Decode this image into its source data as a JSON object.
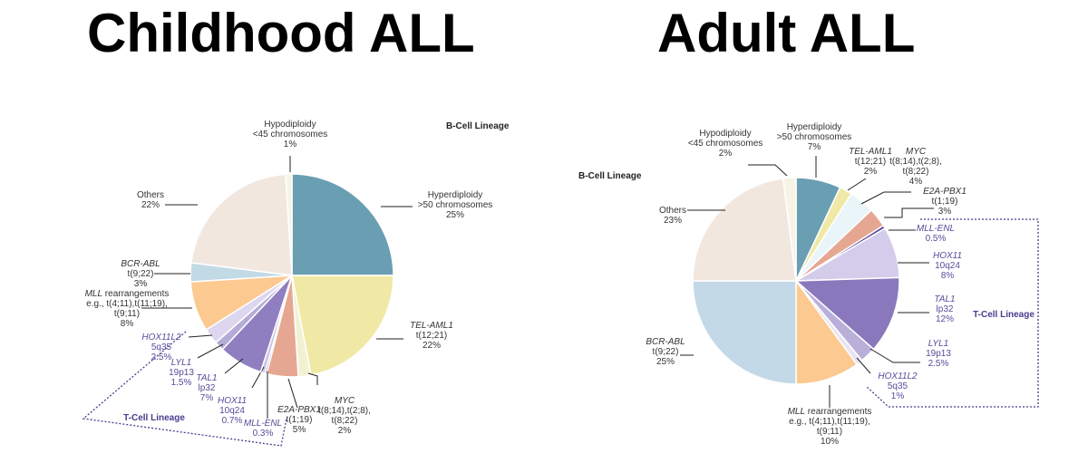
{
  "titles": {
    "left": "Childhood ALL",
    "right": "Adult ALL"
  },
  "chart_data": [
    {
      "type": "pie",
      "title": "Childhood ALL",
      "lineage_labels": {
        "b_cell": "B-Cell Lineage",
        "t_cell": "T-Cell Lineage"
      },
      "slices": [
        {
          "lines": [
            "Hyperdiploidy",
            ">50 chromosomes",
            "25%"
          ],
          "italic_first": false,
          "lineage": "B",
          "value": 25,
          "color": "#6a9eb2"
        },
        {
          "lines": [
            "TEL-AML1",
            "t(12;21)",
            "22%"
          ],
          "italic_first": true,
          "lineage": "B",
          "value": 22,
          "color": "#f0e9a6"
        },
        {
          "lines": [
            "MYC",
            "t(8;14),t(2;8),",
            "t(8;22)",
            "2%"
          ],
          "italic_first": true,
          "lineage": "B",
          "value": 2,
          "color": "#f3f1d4"
        },
        {
          "lines": [
            "E2A-PBX1",
            "t(1;19)",
            "5%"
          ],
          "italic_first": true,
          "lineage": "B",
          "value": 5,
          "color": "#e6a792"
        },
        {
          "lines": [
            "MLL-ENL",
            "0.3%"
          ],
          "italic_first": true,
          "lineage": "T",
          "value": 0.3,
          "color": "#7d6db0"
        },
        {
          "lines": [
            "HOX11",
            "10q24",
            "0.7%"
          ],
          "italic_first": true,
          "lineage": "T",
          "value": 0.7,
          "color": "#cbc4e6"
        },
        {
          "lines": [
            "TAL1",
            "lp32",
            "7%"
          ],
          "italic_first": true,
          "lineage": "T",
          "value": 7,
          "color": "#8f7fc0"
        },
        {
          "lines": [
            "LYL1",
            "19p13",
            "1.5%"
          ],
          "italic_first": true,
          "lineage": "T",
          "value": 1.5,
          "color": "#b5abd8"
        },
        {
          "lines": [
            "HOX11L2",
            "5q35",
            "2.5%"
          ],
          "italic_first": true,
          "lineage": "T",
          "value": 2.5,
          "color": "#dcd6ef"
        },
        {
          "lines": [
            "MLL rearrangements",
            "e.g., t(4;11),t(11;19),",
            "t(9;11)",
            "8%"
          ],
          "italic_first": "MLL",
          "lineage": "B",
          "value": 8,
          "color": "#fcc991"
        },
        {
          "lines": [
            "BCR-ABL",
            "t(9;22)",
            "3%"
          ],
          "italic_first": true,
          "lineage": "B",
          "value": 3,
          "color": "#c2d9e6"
        },
        {
          "lines": [
            "Others",
            "22%"
          ],
          "italic_first": false,
          "lineage": "B",
          "value": 22,
          "color": "#f2e7df"
        },
        {
          "lines": [
            "Hypodiploidy",
            "<45 chromosomes",
            "1%"
          ],
          "italic_first": false,
          "lineage": "B",
          "value": 1,
          "color": "#f7f4e6"
        }
      ]
    },
    {
      "type": "pie",
      "title": "Adult ALL",
      "lineage_labels": {
        "b_cell": "B-Cell Lineage",
        "t_cell": "T-Cell Lineage"
      },
      "slices": [
        {
          "lines": [
            "Hyperdiploidy",
            ">50 chromosomes",
            "7%"
          ],
          "italic_first": false,
          "lineage": "B",
          "value": 7,
          "color": "#6a9eb2"
        },
        {
          "lines": [
            "TEL-AML1",
            "t(12;21)",
            "2%"
          ],
          "italic_first": true,
          "lineage": "B",
          "value": 2,
          "color": "#f0e9a6"
        },
        {
          "lines": [
            "MYC",
            "t(8;14),t(2;8),",
            "t(8;22)",
            "4%"
          ],
          "italic_first": true,
          "lineage": "B",
          "value": 4,
          "color": "#eaf5fa"
        },
        {
          "lines": [
            "E2A-PBX1",
            "t(1;19)",
            "3%"
          ],
          "italic_first": true,
          "lineage": "B",
          "value": 3,
          "color": "#e6a792"
        },
        {
          "lines": [
            "MLL-ENL",
            "0.5%"
          ],
          "italic_first": true,
          "lineage": "T",
          "value": 0.5,
          "color": "#5a4a9a"
        },
        {
          "lines": [
            "HOX11",
            "10q24",
            "8%"
          ],
          "italic_first": true,
          "lineage": "T",
          "value": 8,
          "color": "#d4cceb"
        },
        {
          "lines": [
            "TAL1",
            "lp32",
            "12%"
          ],
          "italic_first": true,
          "lineage": "T",
          "value": 12,
          "color": "#8a78bd"
        },
        {
          "lines": [
            "LYL1",
            "19p13",
            "2.5%"
          ],
          "italic_first": true,
          "lineage": "T",
          "value": 2.5,
          "color": "#b9b0da"
        },
        {
          "lines": [
            "HOX11L2",
            "5q35",
            "1%"
          ],
          "italic_first": true,
          "lineage": "T",
          "value": 1,
          "color": "#e8e4f4"
        },
        {
          "lines": [
            "MLL rearrangements",
            "e.g., t(4;11),t(11;19),",
            "t(9;11)",
            "10%"
          ],
          "italic_first": "MLL",
          "lineage": "B",
          "value": 10,
          "color": "#fcc991"
        },
        {
          "lines": [
            "BCR-ABL",
            "t(9;22)",
            "25%"
          ],
          "italic_first": true,
          "lineage": "B",
          "value": 25,
          "color": "#c3d9e7"
        },
        {
          "lines": [
            "Others",
            "23%"
          ],
          "italic_first": false,
          "lineage": "B",
          "value": 23,
          "color": "#f2e7df"
        },
        {
          "lines": [
            "Hypodiploidy",
            "<45 chromosomes",
            "2%"
          ],
          "italic_first": false,
          "lineage": "B",
          "value": 2,
          "color": "#f7f4e6"
        }
      ]
    }
  ]
}
